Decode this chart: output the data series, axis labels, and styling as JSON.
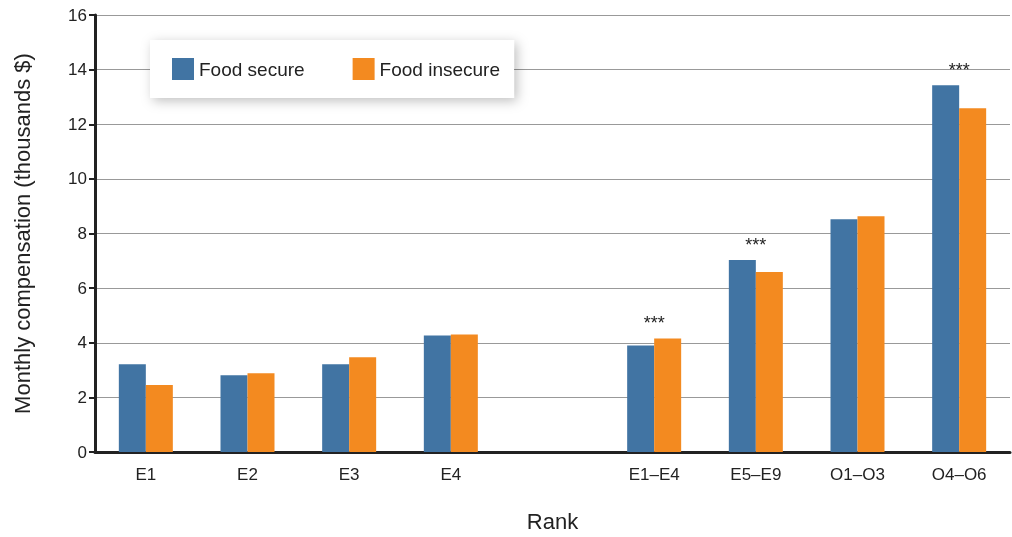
{
  "chart_data": {
    "type": "bar",
    "xlabel": "Rank",
    "ylabel": "Monthly compensation (thousands $)",
    "categories": [
      "E1",
      "E2",
      "E3",
      "E4",
      null,
      "E1–E4",
      "E5–E9",
      "O1–O3",
      "O4–O6"
    ],
    "series": [
      {
        "name": "Food secure",
        "color": "#4174a3",
        "values": [
          3.21,
          2.81,
          3.21,
          4.27,
          null,
          3.9,
          7.03,
          8.52,
          13.43
        ]
      },
      {
        "name": "Food insecure",
        "color": "#f38a20",
        "values": [
          2.45,
          2.88,
          3.47,
          4.3,
          null,
          4.16,
          6.59,
          8.63,
          12.59
        ]
      }
    ],
    "ylim": [
      0,
      16
    ],
    "yticks": [
      0,
      2,
      4,
      6,
      8,
      10,
      12,
      14,
      16
    ],
    "grid": "y",
    "legend": "top left",
    "annotations": [
      {
        "text": "***",
        "x": "E1–E4",
        "y": 4.16
      },
      {
        "text": "***",
        "x": "E5–E9",
        "y": 7.03
      },
      {
        "text": "***",
        "x": "O4–O6",
        "y": 13.43
      }
    ]
  }
}
